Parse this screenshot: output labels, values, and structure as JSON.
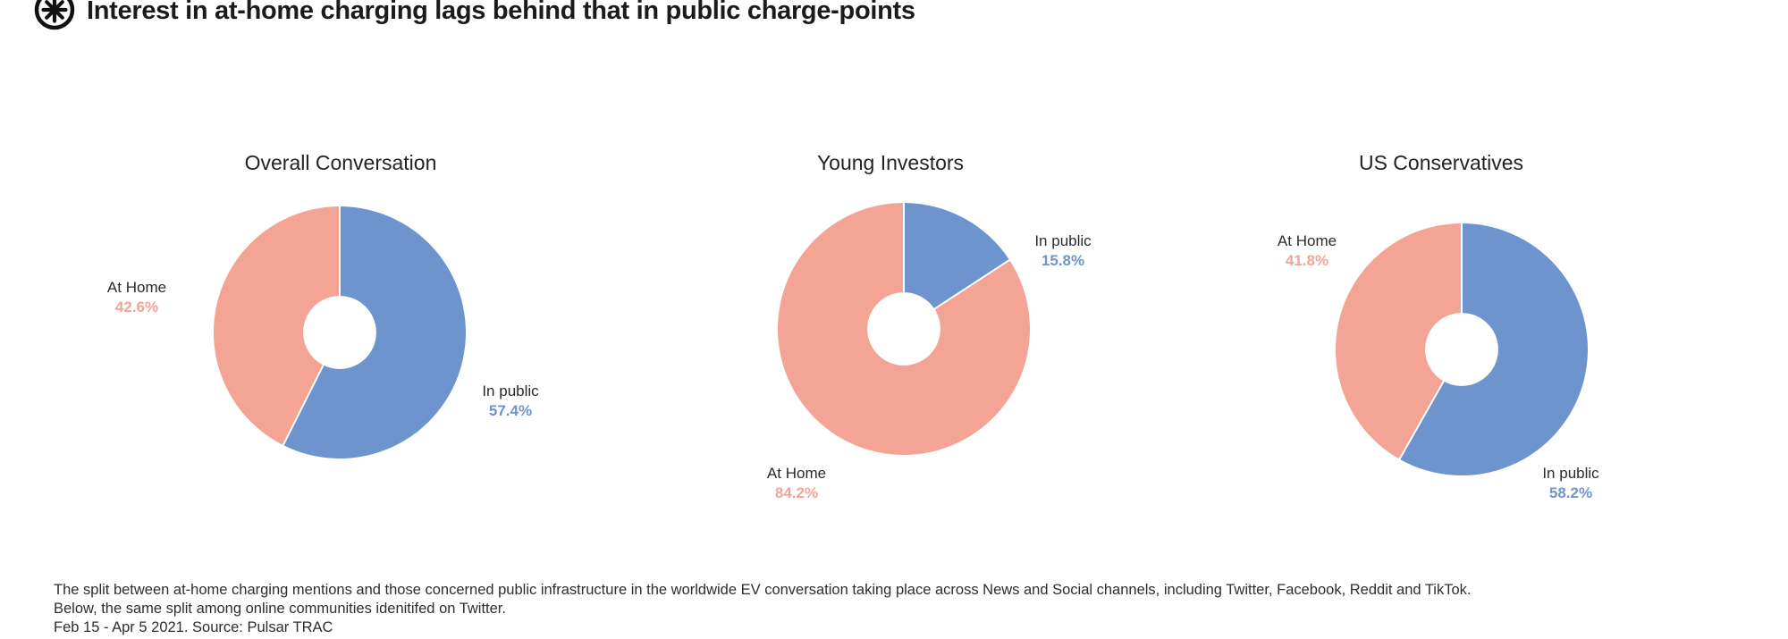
{
  "header": {
    "title": "Interest in at-home charging lags behind that in public charge-points",
    "logo_icon": "starburst-circle-icon"
  },
  "colors": {
    "in_public": "#6E94CE",
    "at_home": "#F3A495",
    "slice_divider": "#FFFFFF",
    "label_text": "#2B2B2B",
    "title_text": "#1B1B1B"
  },
  "chart_data": [
    {
      "type": "pie",
      "variant": "donut",
      "title": "Overall Conversation",
      "start_angle_deg": 0,
      "direction": "clockwise",
      "inner_radius_ratio": 0.29,
      "slices": [
        {
          "label": "In public",
          "value": 57.4,
          "display": "57.4%",
          "color_key": "in_public"
        },
        {
          "label": "At Home",
          "value": 42.6,
          "display": "42.6%",
          "color_key": "at_home"
        }
      ]
    },
    {
      "type": "pie",
      "variant": "donut",
      "title": "Young Investors",
      "start_angle_deg": 0,
      "direction": "clockwise",
      "inner_radius_ratio": 0.29,
      "slices": [
        {
          "label": "In public",
          "value": 15.8,
          "display": "15.8%",
          "color_key": "in_public"
        },
        {
          "label": "At Home",
          "value": 84.2,
          "display": "84.2%",
          "color_key": "at_home"
        }
      ]
    },
    {
      "type": "pie",
      "variant": "donut",
      "title": "US Conservatives",
      "start_angle_deg": 0,
      "direction": "clockwise",
      "inner_radius_ratio": 0.29,
      "slices": [
        {
          "label": "In public",
          "value": 58.2,
          "display": "58.2%",
          "color_key": "in_public"
        },
        {
          "label": "At Home",
          "value": 41.8,
          "display": "41.8%",
          "color_key": "at_home"
        }
      ]
    }
  ],
  "footer": {
    "lines": [
      "The split between at-home charging mentions and those concerned public infrastructure in the worldwide EV conversation taking place across News and Social channels, including Twitter, Facebook, Reddit and TikTok.",
      "Below, the same split among online communities idenitifed on Twitter.",
      "Feb 15 - Apr 5 2021. Source: Pulsar TRAC"
    ]
  }
}
